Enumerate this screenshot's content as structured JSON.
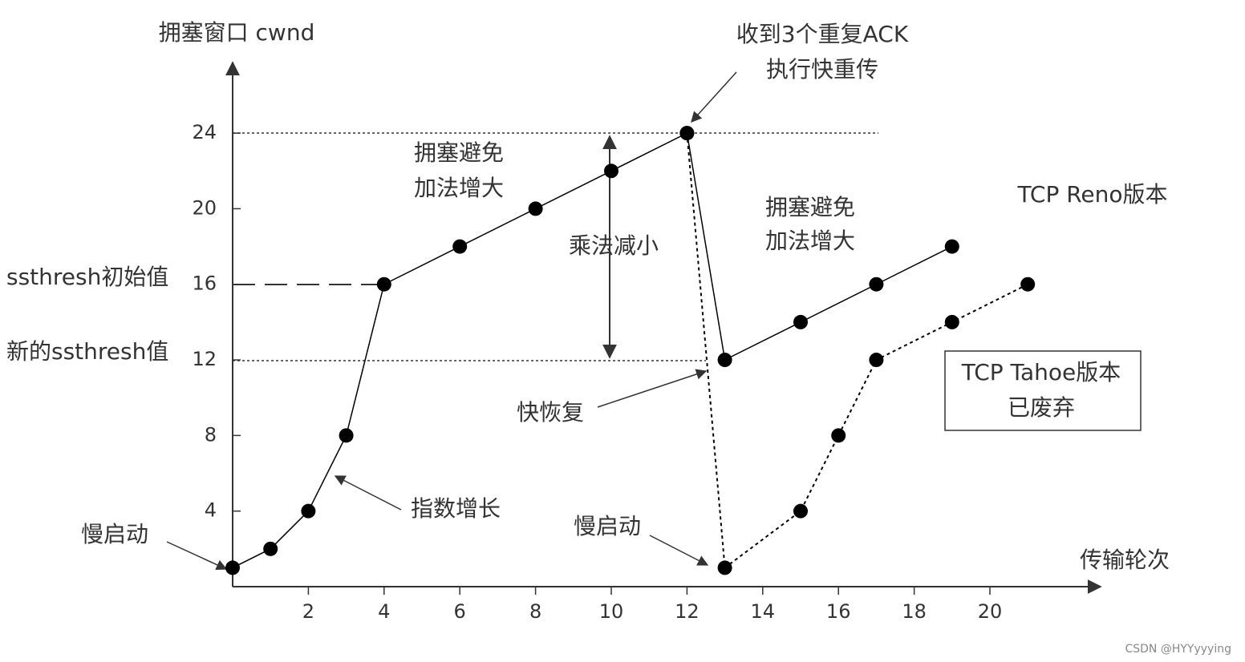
{
  "chart_data": {
    "type": "line",
    "y_label": "拥塞窗口 cwnd",
    "x_label": "传输轮次",
    "xlim": [
      0,
      23
    ],
    "ylim": [
      0,
      28
    ],
    "xticks": [
      2,
      4,
      6,
      8,
      10,
      12,
      14,
      16,
      18,
      20
    ],
    "yticks": [
      4,
      8,
      12,
      16,
      20,
      24
    ],
    "series": [
      {
        "name": "TCP Reno版本",
        "color": "#000000",
        "style": "solid",
        "x": [
          0,
          1,
          2,
          3,
          4,
          6,
          8,
          10,
          12,
          13,
          15,
          17,
          19
        ],
        "values": [
          1,
          2,
          4,
          8,
          16,
          18,
          20,
          22,
          24,
          12,
          14,
          16,
          18
        ]
      },
      {
        "name": "TCP Tahoe版本",
        "color": "#000000",
        "style": "dotted",
        "x": [
          12,
          13,
          15,
          16,
          17,
          19,
          21
        ],
        "values": [
          24,
          1,
          4,
          8,
          12,
          14,
          16
        ]
      }
    ],
    "annotations": [
      {
        "lines": [
          "收到3个重复ACK",
          "执行快重传"
        ]
      },
      {
        "lines": [
          "拥塞避免",
          "加法增大"
        ]
      },
      {
        "lines": [
          "乘法减小"
        ]
      },
      {
        "lines": [
          "拥塞避免",
          "加法增大"
        ]
      },
      {
        "lines": [
          "已废弃"
        ]
      },
      {
        "lines": [
          "ssthresh初始值"
        ]
      },
      {
        "lines": [
          "新的ssthresh值"
        ]
      },
      {
        "lines": [
          "快恢复"
        ]
      },
      {
        "lines": [
          "指数增长"
        ]
      },
      {
        "lines": [
          "慢启动"
        ]
      },
      {
        "lines": [
          "慢启动"
        ]
      }
    ],
    "watermark": "CSDN @HYYyyying"
  }
}
